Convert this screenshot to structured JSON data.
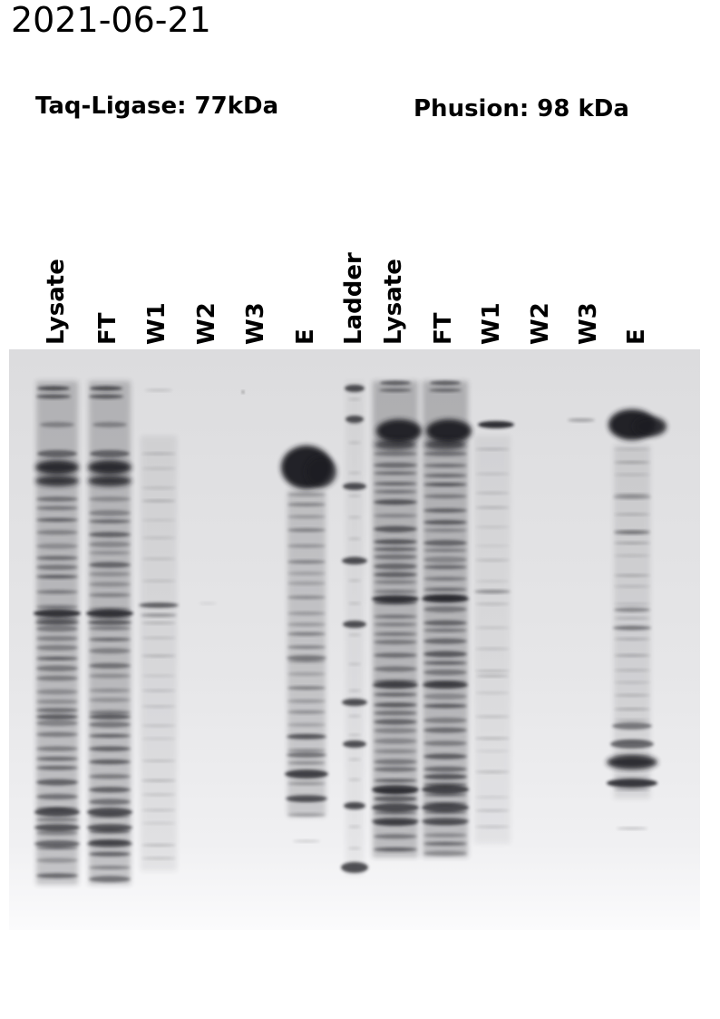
{
  "date_label": "2021-06-21",
  "protein_labels": {
    "left": "Taq-Ligase: 77kDa",
    "right": "Phusion: 98 kDa"
  },
  "lanes": [
    {
      "label": "Lysate",
      "kind": "lysate"
    },
    {
      "label": "FT",
      "kind": "lysate"
    },
    {
      "label": "W1",
      "kind": "wash1"
    },
    {
      "label": "W2",
      "kind": "blank"
    },
    {
      "label": "W3",
      "kind": "blank"
    },
    {
      "label": "E",
      "kind": "elution_left"
    },
    {
      "label": "Ladder",
      "kind": "ladder"
    },
    {
      "label": "Lysate",
      "kind": "lysate2"
    },
    {
      "label": "FT",
      "kind": "lysate2"
    },
    {
      "label": "W1",
      "kind": "wash1b"
    },
    {
      "label": "W2",
      "kind": "blank"
    },
    {
      "label": "W3",
      "kind": "faint"
    },
    {
      "label": "E",
      "kind": "elution_right"
    }
  ],
  "colors": {
    "gel_background": "#e4e4e6",
    "band_dark": "#1e1e22"
  }
}
